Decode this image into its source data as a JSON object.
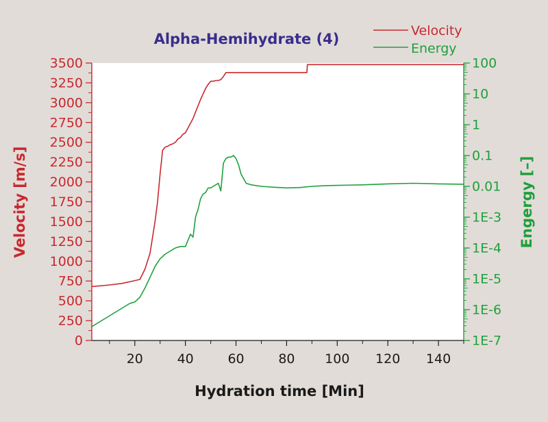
{
  "chart_data": {
    "type": "line",
    "title": "Alpha-Hemihydrate (4)",
    "xlabel": "Hydration time [Min]",
    "ylabel_left": "Velocity [m/s]",
    "ylabel_right": "Engergy [–]",
    "xlim": [
      3,
      150
    ],
    "ylim_left": [
      0,
      3500
    ],
    "ylim_right_log10": [
      -7,
      2
    ],
    "y_right_scale": "log",
    "grid": false,
    "legend_position": "top-right",
    "colors": {
      "velocity": "#c8282d",
      "energy": "#1ea03c",
      "title": "#3a2d8c",
      "axis_text": "#1a1a1a",
      "plot_bg": "#ffffff"
    },
    "x_ticks": [
      "20",
      "40",
      "60",
      "80",
      "100",
      "120",
      "140"
    ],
    "x_tick_values": [
      20,
      40,
      60,
      80,
      100,
      120,
      140
    ],
    "y_left_ticks": [
      "0",
      "250",
      "500",
      "750",
      "1000",
      "1250",
      "1500",
      "1750",
      "2000",
      "2250",
      "2500",
      "2750",
      "3000",
      "3250",
      "3500"
    ],
    "y_left_tick_values": [
      0,
      250,
      500,
      750,
      1000,
      1250,
      1500,
      1750,
      2000,
      2250,
      2500,
      2750,
      3000,
      3250,
      3500
    ],
    "y_right_ticks": [
      "1E-7",
      "1E-6",
      "1E-5",
      "1E-4",
      "1E-3",
      "0.01",
      "0.1",
      "1",
      "10",
      "100"
    ],
    "y_right_tick_exponents": [
      -7,
      -6,
      -5,
      -4,
      -3,
      -2,
      -1,
      0,
      1,
      2
    ],
    "series": [
      {
        "name": "Velocity",
        "axis": "left",
        "x": [
          3,
          10,
          15,
          20,
          22,
          24,
          26,
          28,
          29,
          30,
          31,
          32,
          33,
          34,
          35,
          36,
          37,
          38,
          39,
          40,
          41,
          42,
          43,
          44,
          45,
          46,
          47,
          48,
          49,
          50,
          51,
          52,
          53,
          54,
          55,
          56,
          60,
          70,
          80,
          88,
          88.2,
          100,
          120,
          150
        ],
        "y": [
          680,
          700,
          720,
          755,
          770,
          900,
          1100,
          1500,
          1750,
          2100,
          2400,
          2440,
          2450,
          2470,
          2480,
          2500,
          2540,
          2560,
          2600,
          2620,
          2680,
          2740,
          2800,
          2880,
          2960,
          3040,
          3110,
          3180,
          3230,
          3270,
          3270,
          3280,
          3280,
          3290,
          3330,
          3380,
          3380,
          3380,
          3380,
          3380,
          3480,
          3480,
          3480,
          3480
        ]
      },
      {
        "name": "Energy",
        "axis": "right",
        "x": [
          3,
          6,
          10,
          14,
          18,
          20,
          22,
          24,
          26,
          28,
          30,
          32,
          34,
          36,
          38,
          40,
          41,
          42,
          43,
          44,
          45,
          46,
          47,
          48,
          49,
          50,
          51,
          52,
          53,
          54,
          55,
          56,
          57,
          58,
          59,
          60,
          61,
          62,
          64,
          66,
          70,
          75,
          80,
          85,
          90,
          95,
          100,
          110,
          120,
          130,
          140,
          150
        ],
        "y_log10": [
          -6.55,
          -6.4,
          -6.2,
          -6.0,
          -5.8,
          -5.75,
          -5.6,
          -5.3,
          -4.95,
          -4.6,
          -4.35,
          -4.2,
          -4.1,
          -4.0,
          -3.95,
          -3.95,
          -3.75,
          -3.55,
          -3.65,
          -3.0,
          -2.75,
          -2.4,
          -2.25,
          -2.2,
          -2.05,
          -2.05,
          -2.0,
          -1.95,
          -1.9,
          -2.15,
          -1.25,
          -1.1,
          -1.05,
          -1.05,
          -1.0,
          -1.1,
          -1.3,
          -1.6,
          -1.9,
          -1.95,
          -2.0,
          -2.03,
          -2.05,
          -2.04,
          -2.0,
          -1.98,
          -1.97,
          -1.95,
          -1.92,
          -1.9,
          -1.92,
          -1.93
        ]
      }
    ]
  }
}
